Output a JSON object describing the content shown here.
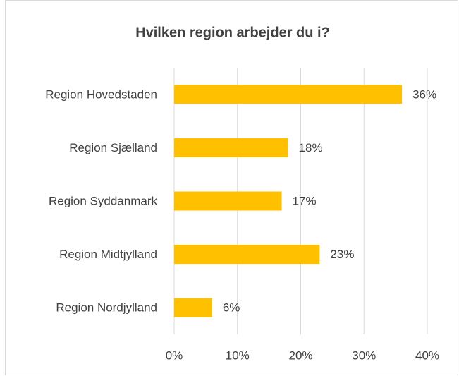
{
  "chart_data": {
    "type": "bar",
    "orientation": "horizontal",
    "title": "Hvilken region arbejder du i?",
    "categories": [
      "Region Hovedstaden",
      "Region Sjælland",
      "Region Syddanmark",
      "Region Midtjylland",
      "Region Nordjylland"
    ],
    "values": [
      36,
      18,
      17,
      23,
      6
    ],
    "value_labels": [
      "36%",
      "18%",
      "17%",
      "23%",
      "6%"
    ],
    "color": "#ffc000",
    "xlim": [
      0,
      40
    ],
    "xticks": [
      {
        "value": 0,
        "label": "0%"
      },
      {
        "value": 10,
        "label": "10%"
      },
      {
        "value": 20,
        "label": "20%"
      },
      {
        "value": 30,
        "label": "30%"
      },
      {
        "value": 40,
        "label": "40%"
      }
    ],
    "grid": true
  }
}
